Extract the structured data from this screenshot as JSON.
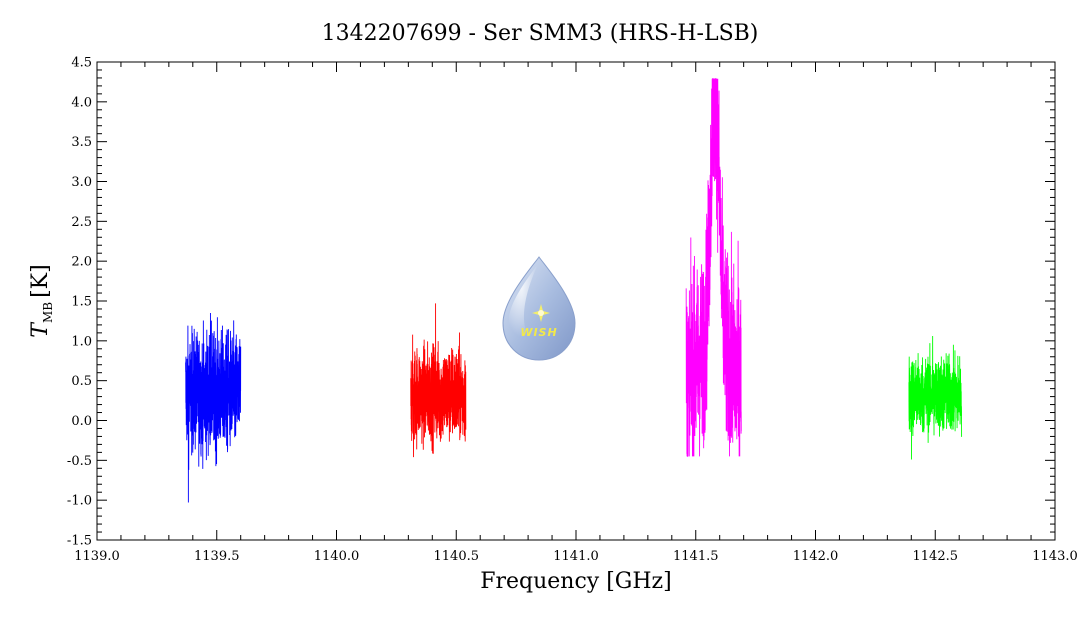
{
  "chart_data": {
    "type": "line",
    "title": "1342207699 - Ser SMM3 (HRS-H-LSB)",
    "xlabel": "Frequency [GHz]",
    "ylabel": {
      "symbol": "T",
      "subscript": "MB",
      "unit": "[K]"
    },
    "xlim": [
      1139.0,
      1143.0
    ],
    "ylim": [
      -1.5,
      4.5
    ],
    "xticks": [
      "1139.0",
      "1139.5",
      "1140.0",
      "1140.5",
      "1141.0",
      "1141.5",
      "1142.0",
      "1142.5",
      "1143.0"
    ],
    "yticks": [
      "-1.5",
      "-1.0",
      "-0.5",
      "0.0",
      "0.5",
      "1.0",
      "1.5",
      "2.0",
      "2.5",
      "3.0",
      "3.5",
      "4.0",
      "4.5"
    ],
    "grid": false,
    "series": [
      {
        "color": "#0000ff",
        "x_range": [
          1139.37,
          1139.6
        ],
        "baseline": 0.35,
        "noise_min": -1.03,
        "noise_max": 1.35,
        "peak_x": null,
        "peak_y": null
      },
      {
        "color": "#ff0000",
        "x_range": [
          1140.31,
          1140.54
        ],
        "baseline": 0.33,
        "noise_min": -0.46,
        "noise_max": 1.47,
        "peak_x": null,
        "peak_y": null
      },
      {
        "color": "#ff00ff",
        "x_range": [
          1141.46,
          1141.69
        ],
        "baseline": 0.45,
        "noise_min": -0.45,
        "noise_max": 4.29,
        "peak_x": 1141.58,
        "peak_y": 4.29
      },
      {
        "color": "#00ff00",
        "x_range": [
          1142.39,
          1142.61
        ],
        "baseline": 0.32,
        "noise_min": -0.49,
        "noise_max": 1.06,
        "peak_x": null,
        "peak_y": null
      }
    ]
  },
  "logo": {
    "text": "WISH",
    "icon": "wish-water-drop-logo"
  }
}
